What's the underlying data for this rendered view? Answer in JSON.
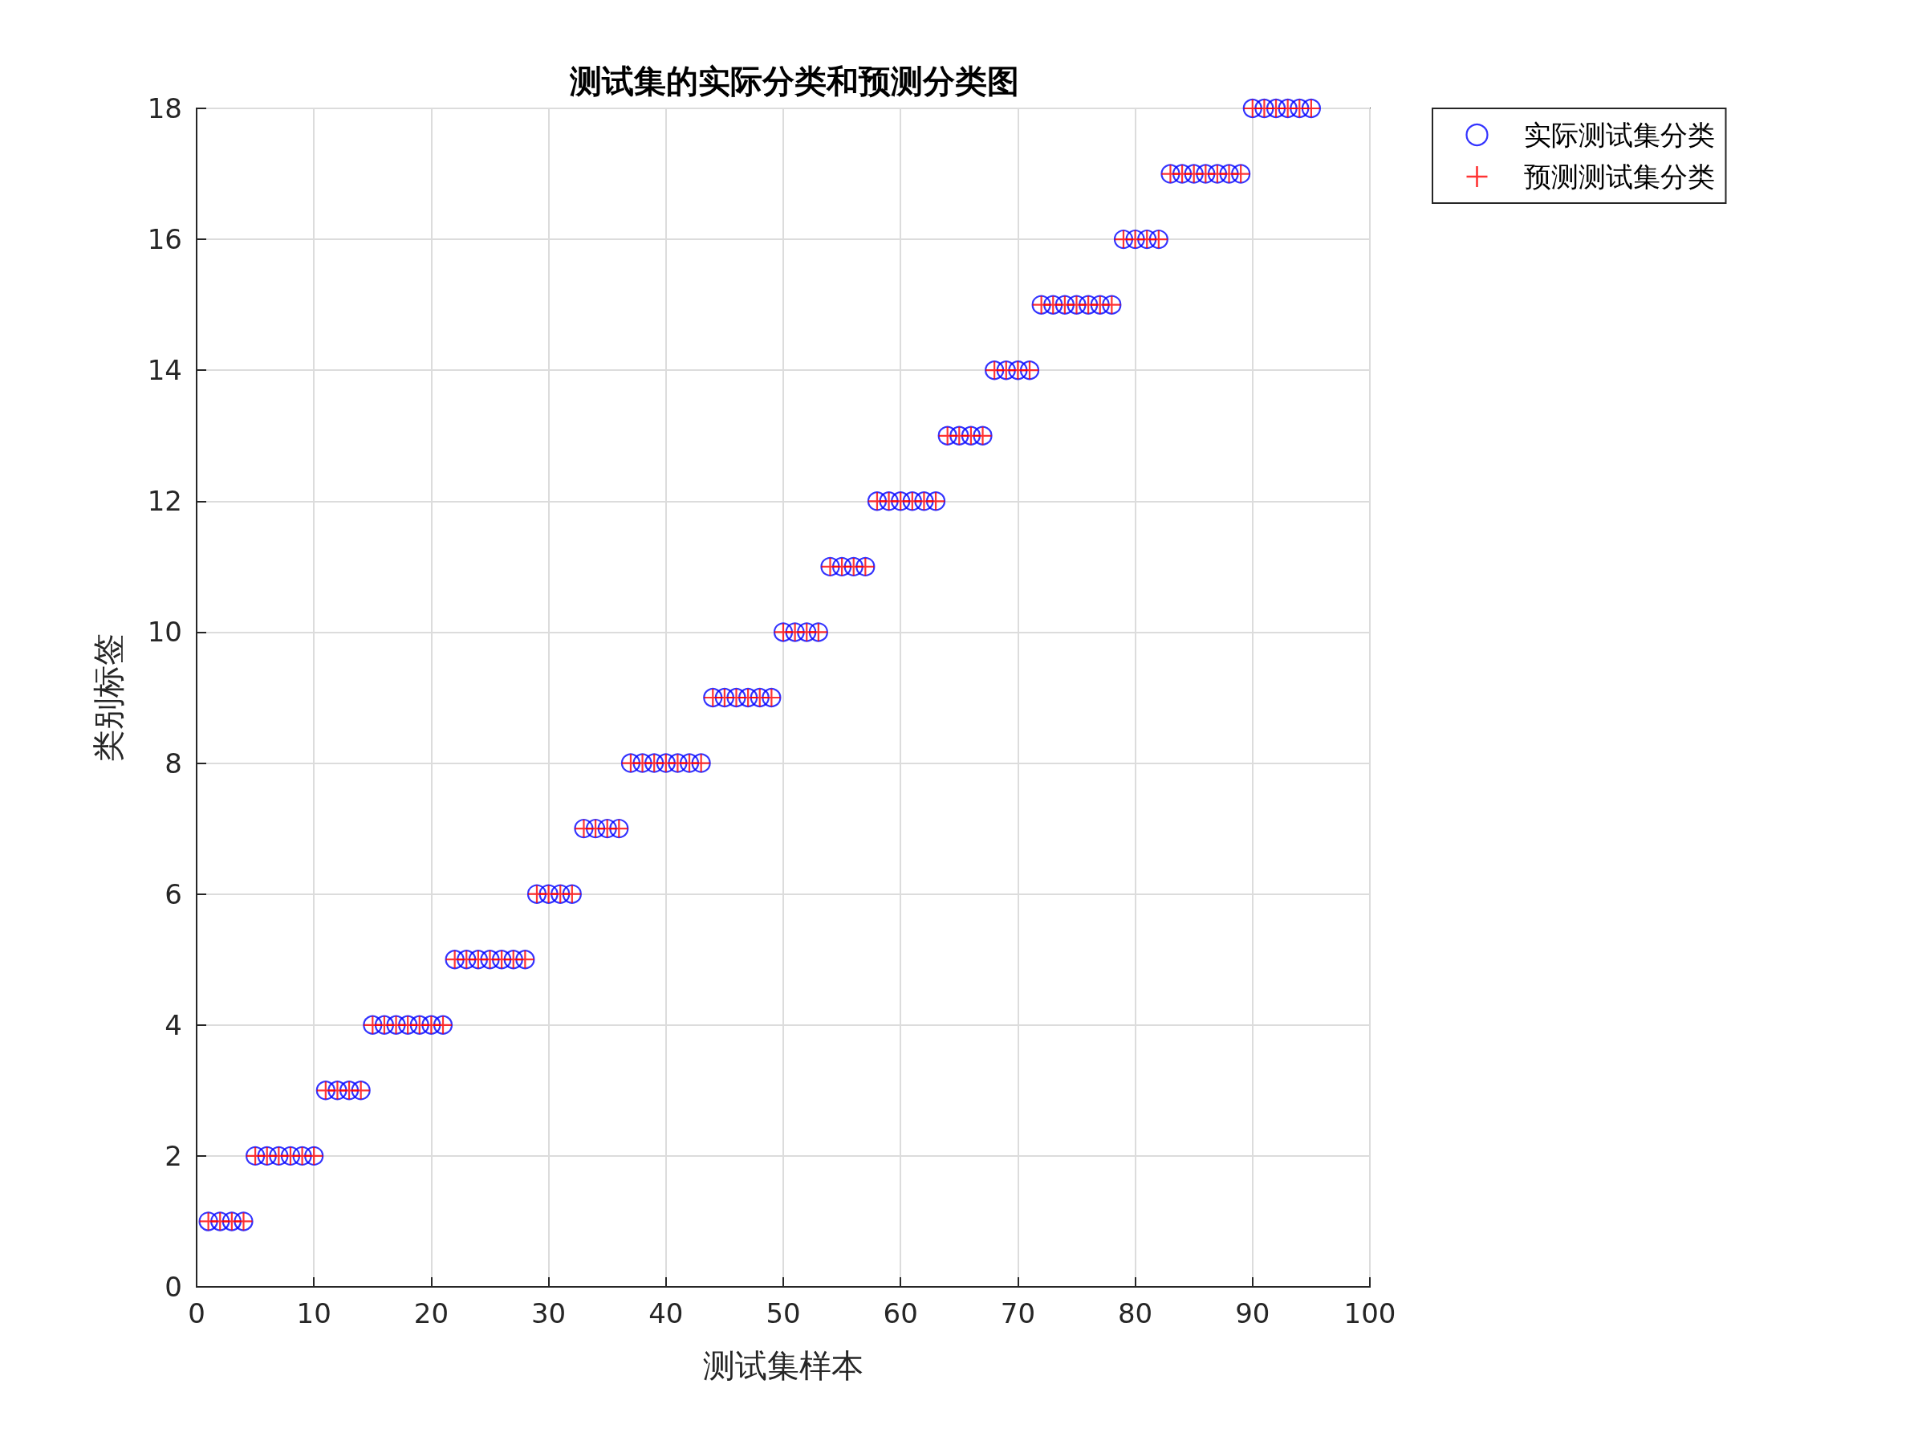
{
  "chart_data": {
    "type": "scatter",
    "title": "测试集的实际分类和预测分类图",
    "xlabel": "测试集样本",
    "ylabel": "类别标签",
    "x": [
      1,
      2,
      3,
      4,
      5,
      6,
      7,
      8,
      9,
      10,
      11,
      12,
      13,
      14,
      15,
      16,
      17,
      18,
      19,
      20,
      21,
      22,
      23,
      24,
      25,
      26,
      27,
      28,
      29,
      30,
      31,
      32,
      33,
      34,
      35,
      36,
      37,
      38,
      39,
      40,
      41,
      42,
      43,
      44,
      45,
      46,
      47,
      48,
      49,
      50,
      51,
      52,
      53,
      54,
      55,
      56,
      57,
      58,
      59,
      60,
      61,
      62,
      63,
      64,
      65,
      66,
      67,
      68,
      69,
      70,
      71,
      72,
      73,
      74,
      75,
      76,
      77,
      78,
      79,
      80,
      81,
      82,
      83,
      84,
      85,
      86,
      87,
      88,
      89,
      90,
      91,
      92,
      93,
      94,
      95
    ],
    "series": [
      {
        "name": "实际测试集分类",
        "color": "#0000ff",
        "marker": "circle",
        "values": [
          1,
          1,
          1,
          1,
          2,
          2,
          2,
          2,
          2,
          2,
          3,
          3,
          3,
          3,
          4,
          4,
          4,
          4,
          4,
          4,
          4,
          5,
          5,
          5,
          5,
          5,
          5,
          5,
          6,
          6,
          6,
          6,
          7,
          7,
          7,
          7,
          8,
          8,
          8,
          8,
          8,
          8,
          8,
          9,
          9,
          9,
          9,
          9,
          9,
          10,
          10,
          10,
          10,
          11,
          11,
          11,
          11,
          12,
          12,
          12,
          12,
          12,
          12,
          13,
          13,
          13,
          13,
          14,
          14,
          14,
          14,
          15,
          15,
          15,
          15,
          15,
          15,
          15,
          16,
          16,
          16,
          16,
          17,
          17,
          17,
          17,
          17,
          17,
          17,
          18,
          18,
          18,
          18,
          18,
          18
        ]
      },
      {
        "name": "预测测试集分类",
        "color": "#ff0000",
        "marker": "cross",
        "values": [
          1,
          1,
          1,
          1,
          2,
          2,
          2,
          2,
          2,
          2,
          3,
          3,
          3,
          3,
          4,
          4,
          4,
          4,
          4,
          4,
          4,
          5,
          5,
          5,
          5,
          5,
          5,
          5,
          6,
          6,
          6,
          6,
          7,
          7,
          7,
          7,
          8,
          8,
          8,
          8,
          8,
          8,
          8,
          9,
          9,
          9,
          9,
          9,
          9,
          10,
          10,
          10,
          10,
          11,
          11,
          11,
          11,
          12,
          12,
          12,
          12,
          12,
          12,
          13,
          13,
          13,
          13,
          14,
          14,
          14,
          14,
          15,
          15,
          15,
          15,
          15,
          15,
          15,
          16,
          16,
          16,
          16,
          17,
          17,
          17,
          17,
          17,
          17,
          17,
          18,
          18,
          18,
          18,
          18,
          18
        ]
      }
    ],
    "xlim": [
      0,
      100
    ],
    "xticks": [
      0,
      10,
      20,
      30,
      40,
      50,
      60,
      70,
      80,
      90,
      100
    ],
    "ylim": [
      0,
      18
    ],
    "yticks": [
      0,
      2,
      4,
      6,
      8,
      10,
      12,
      14,
      16,
      18
    ],
    "grid": true,
    "legend": "top right"
  }
}
